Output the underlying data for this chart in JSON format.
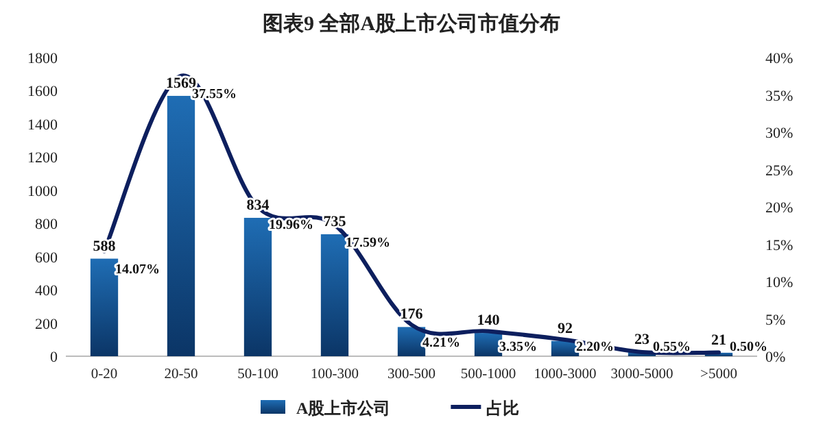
{
  "chart_data": {
    "type": "bar",
    "title": "图表9  全部A股上市公司市值分布",
    "categories": [
      "0-20",
      "20-50",
      "50-100",
      "100-300",
      "300-500",
      "500-1000",
      "1000-3000",
      "3000-5000",
      ">5000"
    ],
    "series": [
      {
        "name": "A股上市公司",
        "color": "#1f6db4",
        "values": [
          588,
          1569,
          834,
          735,
          176,
          140,
          92,
          23,
          21
        ],
        "value_labels": [
          "588",
          "1569",
          "834",
          "735",
          "176",
          "140",
          "92",
          "23",
          "21"
        ]
      },
      {
        "name": "占比",
        "type": "line",
        "axis": "y2",
        "color": "#0d1f5e",
        "values": [
          14.07,
          37.55,
          19.96,
          17.59,
          4.21,
          3.35,
          2.2,
          0.55,
          0.5
        ],
        "value_labels": [
          "14.07%",
          "37.55%",
          "19.96%",
          "17.59%",
          "4.21%",
          "3.35%",
          "2.20%",
          "0.55%",
          "0.50%"
        ]
      }
    ],
    "ylim": [
      0,
      1800
    ],
    "yticks": [
      0,
      200,
      400,
      600,
      800,
      1000,
      1200,
      1400,
      1600,
      1800
    ],
    "y2lim": [
      0,
      40
    ],
    "y2ticks": [
      {
        "value": 0,
        "label": "0%"
      },
      {
        "value": 5,
        "label": "5%"
      },
      {
        "value": 10,
        "label": "10%"
      },
      {
        "value": 15,
        "label": "15%"
      },
      {
        "value": 20,
        "label": "20%"
      },
      {
        "value": 25,
        "label": "25%"
      },
      {
        "value": 30,
        "label": "30%"
      },
      {
        "value": 35,
        "label": "35%"
      },
      {
        "value": 40,
        "label": "40%"
      }
    ],
    "legend": "bottom",
    "grid": false
  }
}
